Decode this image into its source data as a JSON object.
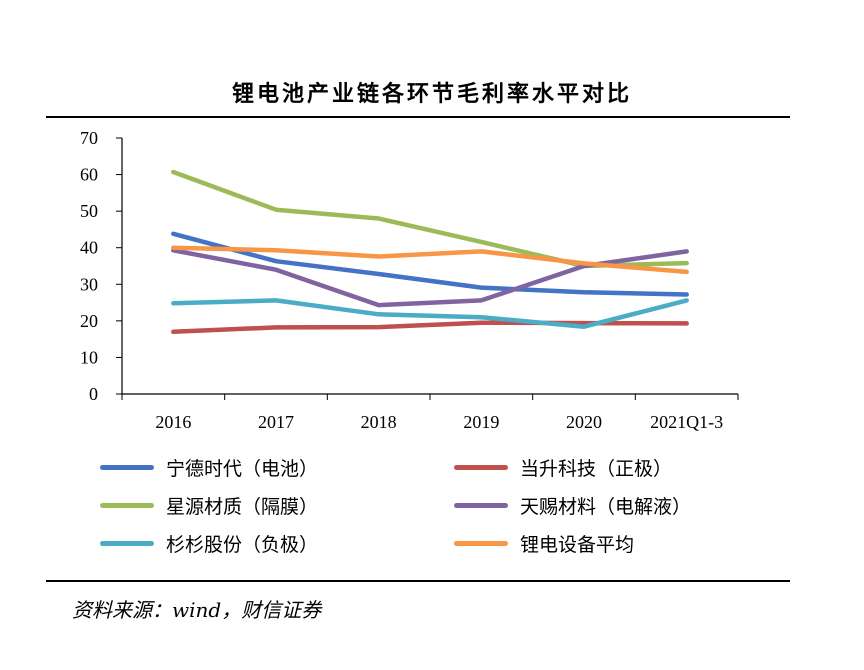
{
  "title": "锂电池产业链各环节毛利率水平对比",
  "source": "资料来源：wind，财信证券",
  "chart_data": {
    "type": "line",
    "title": "锂电池产业链各环节毛利率水平对比",
    "xlabel": "",
    "ylabel": "",
    "categories": [
      "2016",
      "2017",
      "2018",
      "2019",
      "2020",
      "2021Q1-3"
    ],
    "ylim": [
      0,
      70
    ],
    "yticks": [
      0,
      10,
      20,
      30,
      40,
      50,
      60,
      70
    ],
    "grid": false,
    "legend_position": "bottom",
    "series": [
      {
        "name": "宁德时代（电池）",
        "color": "#4472C4",
        "values": [
          43.8,
          36.3,
          32.8,
          29.1,
          27.8,
          27.2
        ]
      },
      {
        "name": "当升科技（正极）",
        "color": "#C0504D",
        "values": [
          17.0,
          18.2,
          18.3,
          19.5,
          19.4,
          19.3
        ]
      },
      {
        "name": "星源材质（隔膜）",
        "color": "#9BBB59",
        "values": [
          60.7,
          50.4,
          48.0,
          41.6,
          35.0,
          35.8
        ]
      },
      {
        "name": "天赐材料（电解液）",
        "color": "#8064A2",
        "values": [
          39.3,
          34.0,
          24.3,
          25.6,
          35.0,
          39.0
        ]
      },
      {
        "name": "杉杉股份（负极）",
        "color": "#4BACC6",
        "values": [
          24.8,
          25.6,
          21.8,
          21.0,
          18.4,
          25.6
        ]
      },
      {
        "name": "锂电设备平均",
        "color": "#F79646",
        "values": [
          40.0,
          39.3,
          37.6,
          39.0,
          35.7,
          33.4
        ]
      }
    ]
  }
}
